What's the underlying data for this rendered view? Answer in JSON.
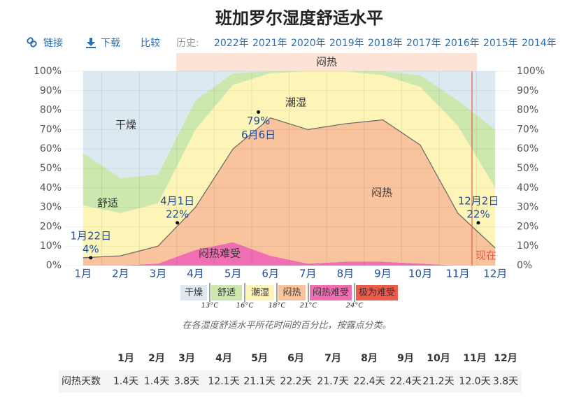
{
  "toolbar": {
    "links": [
      "链接",
      "下载",
      "比较"
    ],
    "history_label": "历史:",
    "years": [
      "2022年",
      "2021年",
      "2020年",
      "2019年",
      "2018年",
      "2017年",
      "2016年",
      "2015年",
      "2014年"
    ]
  },
  "chart_data": {
    "type": "stacked_area",
    "title": "班加罗尔湿度舒适水平",
    "categories": [
      "1月",
      "2月",
      "3月",
      "4月",
      "5月",
      "6月",
      "7月",
      "8月",
      "9月",
      "10月",
      "11月",
      "12月"
    ],
    "series": [
      {
        "name": "极为难受",
        "color": "#ef5a4a",
        "values": [
          0,
          0,
          0,
          0,
          0,
          0,
          0,
          0,
          0,
          0,
          0,
          0
        ]
      },
      {
        "name": "闷热难受",
        "color": "#f06fb2",
        "values": [
          0,
          0,
          1,
          8,
          12,
          5,
          1,
          2,
          2,
          1,
          0,
          0
        ]
      },
      {
        "name": "闷热",
        "color": "#f9c39d",
        "values": [
          4,
          5,
          9,
          22,
          48,
          71,
          69,
          71,
          73,
          61,
          27,
          9
        ]
      },
      {
        "name": "潮湿",
        "color": "#fdf5b8",
        "values": [
          27,
          22,
          22,
          40,
          33,
          23,
          30,
          27,
          23,
          30,
          45,
          31
        ]
      },
      {
        "name": "舒适",
        "color": "#cce8ae",
        "values": [
          27,
          18,
          15,
          15,
          6,
          1,
          0,
          0,
          2,
          6,
          13,
          30
        ]
      },
      {
        "name": "干燥",
        "color": "#dde9f1",
        "values": [
          42,
          55,
          53,
          15,
          1,
          0,
          0,
          0,
          0,
          2,
          15,
          30
        ]
      }
    ],
    "thresholds": [
      "13°C",
      "16°C",
      "18°C",
      "21°C",
      "24°C"
    ],
    "ylim": [
      0,
      100
    ],
    "yticks": [
      {
        "value": 0,
        "label": "0%"
      },
      {
        "value": 10,
        "label": "10%"
      },
      {
        "value": 20,
        "label": "20%"
      },
      {
        "value": 30,
        "label": "30%"
      },
      {
        "value": 40,
        "label": "40%"
      },
      {
        "value": 50,
        "label": "50%"
      },
      {
        "value": 60,
        "label": "60%"
      },
      {
        "value": 70,
        "label": "70%"
      },
      {
        "value": 80,
        "label": "80%"
      },
      {
        "value": 90,
        "label": "90%"
      },
      {
        "value": 100,
        "label": "100%"
      }
    ],
    "grid": true,
    "annotations": [
      {
        "date": "1月22日",
        "value": 4,
        "label": "4%"
      },
      {
        "date": "4月1日",
        "value": 22,
        "label": "22%"
      },
      {
        "date": "6月6日",
        "value": 79,
        "label": "79%"
      },
      {
        "date": "12月2日",
        "value": 22,
        "label": "22%"
      }
    ],
    "season_label": "闷热",
    "now_label": "现在",
    "caption": "在各湿度舒适水平所花时间的百分比，按露点分类。"
  },
  "table": {
    "columns": [
      "1月",
      "2月",
      "3月",
      "4月",
      "5月",
      "6月",
      "7月",
      "8月",
      "9月",
      "10月",
      "11月",
      "12月"
    ],
    "rows": [
      {
        "label": "闷热天数",
        "cells": [
          "1.4天",
          "1.4天",
          "3.8天",
          "12.1天",
          "21.1天",
          "22.2天",
          "21.7天",
          "22.4天",
          "22.4天",
          "21.2天",
          "12.0天",
          "3.8天"
        ]
      }
    ]
  }
}
